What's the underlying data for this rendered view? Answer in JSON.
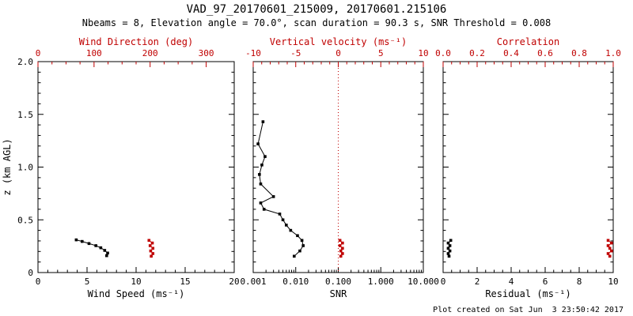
{
  "header": {
    "title": "VAD_97_20170601_215009, 20170601.215106",
    "subtitle": "Nbeams = 8, Elevation angle = 70.0°, scan duration = 90.3 s, SNR Threshold = 0.008"
  },
  "footer": {
    "created": "Plot created on Sat Jun  3 23:50:42 2017"
  },
  "colors": {
    "axis_black": "#000000",
    "axis_red": "#c00000"
  },
  "chart_data": {
    "type": "scatter",
    "title": "VAD_97_20170601_215009, 20170601.215106",
    "subtitle": "Nbeams = 8, Elevation angle = 70.0°, scan duration = 90.3 s, SNR Threshold = 0.008",
    "y_axis": {
      "label": "z (km AGL)",
      "min": 0,
      "max": 2.0,
      "ticks": [
        0,
        0.5,
        1.0,
        1.5,
        2.0
      ],
      "tick_labels": [
        "0",
        "0.5",
        "1.0",
        "1.5",
        "2.0"
      ],
      "minor": 4
    },
    "panels": [
      {
        "name": "wind",
        "bottom_axis": {
          "label": "Wind Speed (ms⁻¹)",
          "min": 0,
          "max": 20,
          "scale": "linear",
          "ticks": [
            0,
            5,
            10,
            15,
            20
          ],
          "tick_labels": [
            "0",
            "5",
            "10",
            "15",
            "20"
          ],
          "minor": 4,
          "color": "#000000"
        },
        "top_axis": {
          "label": "Wind Direction (deg)",
          "min": 0,
          "max": 350,
          "scale": "linear",
          "ticks": [
            0,
            100,
            200,
            300
          ],
          "tick_labels": [
            "0",
            "100",
            "200",
            "300"
          ],
          "minor": 3,
          "color": "#c00000"
        },
        "show_y_labels": true,
        "series": [
          {
            "name": "wind-speed",
            "axis": "bottom",
            "color": "#000000",
            "points": [
              [
                3.9,
                0.31
              ],
              [
                4.5,
                0.295
              ],
              [
                5.2,
                0.275
              ],
              [
                5.9,
                0.255
              ],
              [
                6.4,
                0.235
              ],
              [
                6.8,
                0.21
              ],
              [
                7.1,
                0.185
              ],
              [
                7.0,
                0.16
              ]
            ]
          },
          {
            "name": "wind-direction",
            "axis": "top",
            "color": "#c00000",
            "points": [
              [
                198,
                0.305
              ],
              [
                204,
                0.28
              ],
              [
                200,
                0.255
              ],
              [
                205,
                0.23
              ],
              [
                201,
                0.205
              ],
              [
                205,
                0.18
              ],
              [
                202,
                0.155
              ]
            ]
          }
        ]
      },
      {
        "name": "snr",
        "bottom_axis": {
          "label": "SNR",
          "min": 0.001,
          "max": 10.0,
          "scale": "log",
          "ticks": [
            0.001,
            0.01,
            0.1,
            1,
            10
          ],
          "tick_labels": [
            "0.001",
            "0.010",
            "0.100",
            "1.000",
            "10.000"
          ],
          "color": "#000000"
        },
        "top_axis": {
          "label": "Vertical velocity (ms⁻¹)",
          "min": -10,
          "max": 10,
          "scale": "linear",
          "ticks": [
            -10,
            -5,
            0,
            5,
            10
          ],
          "tick_labels": [
            "-10",
            "-5",
            "0",
            "5",
            "10"
          ],
          "minor": 4,
          "color": "#c00000"
        },
        "show_y_labels": false,
        "vline": {
          "value": 0,
          "axis": "top",
          "color": "#c00000"
        },
        "series": [
          {
            "name": "snr-profile",
            "axis": "bottom",
            "color": "#000000",
            "points": [
              [
                0.0017,
                1.43
              ],
              [
                0.0013,
                1.22
              ],
              [
                0.0019,
                1.1
              ],
              [
                0.0016,
                1.02
              ],
              [
                0.0014,
                0.93
              ],
              [
                0.0015,
                0.84
              ],
              [
                0.003,
                0.72
              ],
              [
                0.0015,
                0.66
              ],
              [
                0.0018,
                0.6
              ],
              [
                0.0042,
                0.555
              ],
              [
                0.005,
                0.5
              ],
              [
                0.006,
                0.45
              ],
              [
                0.0076,
                0.4
              ],
              [
                0.011,
                0.35
              ],
              [
                0.014,
                0.305
              ],
              [
                0.015,
                0.255
              ],
              [
                0.0125,
                0.205
              ],
              [
                0.0092,
                0.155
              ]
            ]
          },
          {
            "name": "vertical-velocity",
            "axis": "top",
            "color": "#c00000",
            "points": [
              [
                0.2,
                0.305
              ],
              [
                0.5,
                0.28
              ],
              [
                0.2,
                0.255
              ],
              [
                0.5,
                0.23
              ],
              [
                0.3,
                0.205
              ],
              [
                0.5,
                0.18
              ],
              [
                0.3,
                0.155
              ]
            ]
          }
        ]
      },
      {
        "name": "residual",
        "bottom_axis": {
          "label": "Residual (ms⁻¹)",
          "min": 0,
          "max": 10,
          "scale": "linear",
          "ticks": [
            0,
            2,
            4,
            6,
            8,
            10
          ],
          "tick_labels": [
            "0",
            "2",
            "4",
            "6",
            "8",
            "10"
          ],
          "minor": 3,
          "color": "#000000"
        },
        "top_axis": {
          "label": "Correlation",
          "min": 0.0,
          "max": 1.0,
          "scale": "linear",
          "ticks": [
            0.0,
            0.2,
            0.4,
            0.6,
            0.8,
            1.0
          ],
          "tick_labels": [
            "0.0",
            "0.2",
            "0.4",
            "0.6",
            "0.8",
            "1.0"
          ],
          "minor": 3,
          "color": "#c00000"
        },
        "show_y_labels": false,
        "series": [
          {
            "name": "residual",
            "axis": "bottom",
            "color": "#000000",
            "points": [
              [
                0.45,
                0.305
              ],
              [
                0.3,
                0.28
              ],
              [
                0.4,
                0.255
              ],
              [
                0.3,
                0.23
              ],
              [
                0.4,
                0.205
              ],
              [
                0.3,
                0.18
              ],
              [
                0.35,
                0.155
              ]
            ]
          },
          {
            "name": "correlation",
            "axis": "top",
            "color": "#c00000",
            "points": [
              [
                0.97,
                0.305
              ],
              [
                0.99,
                0.28
              ],
              [
                0.97,
                0.255
              ],
              [
                0.98,
                0.23
              ],
              [
                0.99,
                0.205
              ],
              [
                0.97,
                0.18
              ],
              [
                0.98,
                0.155
              ]
            ]
          }
        ]
      }
    ]
  }
}
